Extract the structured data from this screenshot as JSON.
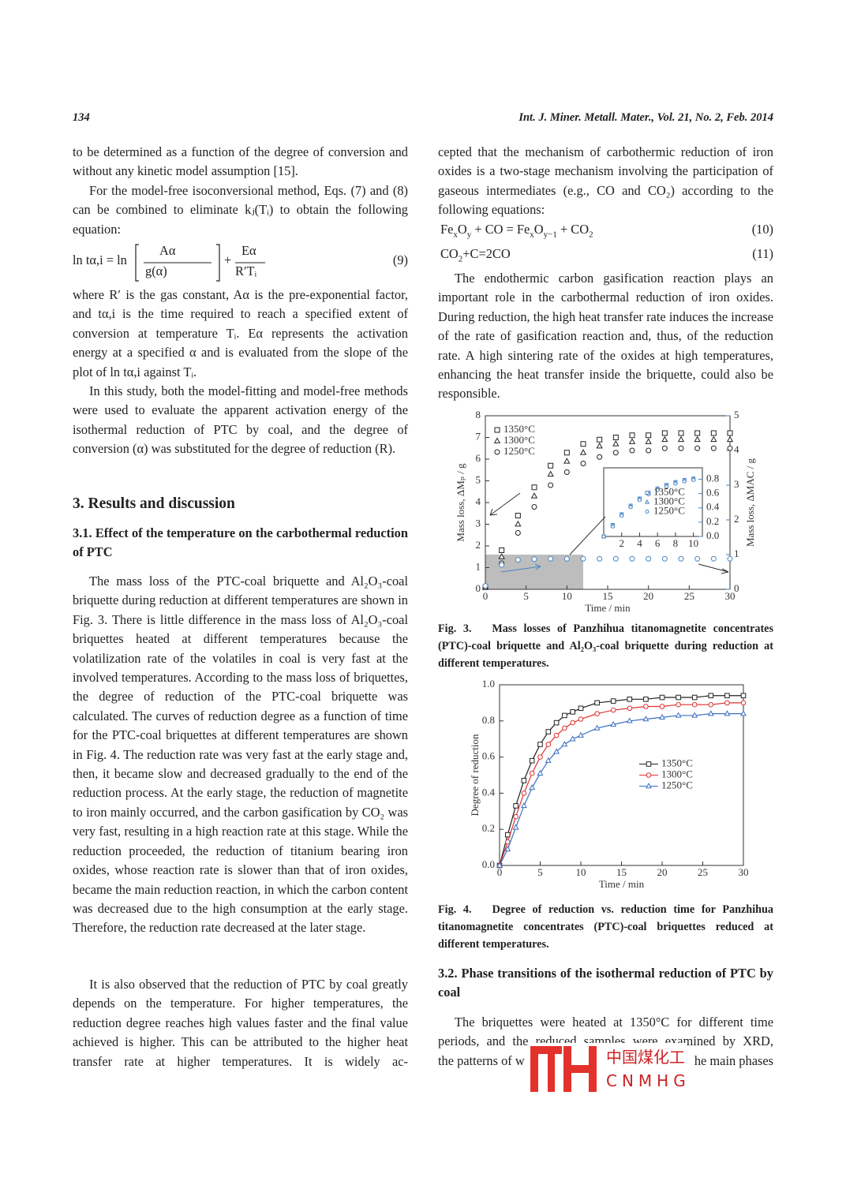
{
  "header": {
    "page": "134",
    "journal": "Int. J. Miner. Metall. Mater., Vol. 21, No. 2, Feb. 2014"
  },
  "left": {
    "p1": "to be determined as a function of the degree of conversion and without any kinetic model assumption [15].",
    "p2": "For the model-free isoconversional method, Eqs. (7) and (8) can be combined to eliminate kⱼ(Tᵢ) to obtain the following equation:",
    "eq9": {
      "lhs": "ln tα,i = ln",
      "num1": "Aα",
      "den1": "g(α)",
      "op": "+",
      "num2": "Eα",
      "den2": "R′Tᵢ",
      "number": "(9)"
    },
    "p3": "where R′ is the gas constant, Aα is the pre-exponential factor, and tα,i is the time required to reach a specified extent of conversion at temperature Tᵢ. Eα represents the activation energy at a specified α and is evaluated from the slope of the plot of ln tα,i against Tᵢ.",
    "p4": "In this study, both the model-fitting and model-free methods were used to evaluate the apparent activation energy of the isothermal reduction of PTC by coal, and the degree of conversion (α) was substituted for the degree of reduction (R).",
    "heading": "3. Results and discussion",
    "subheading": "3.1. Effect of the temperature on the carbothermal reduction of PTC",
    "p5": "The mass loss of the PTC-coal briquette and Al₂O₃-coal briquette during reduction at different temperatures are shown in Fig. 3. There is little difference in the mass loss of Al₂O₃-coal briquettes heated at different temperatures because the volatilization rate of the volatiles in coal is very fast at the involved temperatures. According to the mass loss of briquettes, the degree of reduction of the PTC-coal briquette was calculated. The curves of reduction degree as a function of time for the PTC-coal briquettes at different temperatures are shown in Fig. 4. The reduction rate was very fast at the early stage and, then, it became slow and decreased gradually to the end of the reduction process. At the early stage, the reduction of magnetite to iron mainly occurred, and the carbon gasification by CO₂ was very fast, resulting in a high reaction rate at this stage. While the reduction proceeded, the reduction of titanium bearing iron oxides, whose reaction rate is slower than that of iron oxides, became the main reduction reaction, in which the carbon content was decreased due to the high consumption at the early stage. Therefore, the reduction rate decreased at the later stage.",
    "p6": "It is also observed that the reduction of PTC by coal greatly depends on the temperature. For higher temperatures, the reduction degree reaches high values faster and the final value achieved is higher. This can be attributed to the higher heat transfer rate at higher temperatures. It is widely ac-"
  },
  "right": {
    "p1": "cepted that the mechanism of carbothermic reduction of iron oxides is a two-stage mechanism involving the participation of gaseous intermediates (e.g., CO and CO₂) according to the following equations:",
    "eq10": {
      "segments": [
        {
          "text": "Fe"
        },
        {
          "text": "x",
          "sub": true
        },
        {
          "text": "O"
        },
        {
          "text": "y",
          "sub": true
        },
        {
          "text": " + CO = Fe"
        },
        {
          "text": "x",
          "sub": true
        },
        {
          "text": "O"
        },
        {
          "text": "y−1",
          "sub": true
        },
        {
          "text": " + CO"
        },
        {
          "text": "2",
          "sub": true
        }
      ],
      "number": "(10)"
    },
    "eq11": {
      "segments": [
        {
          "text": "CO"
        },
        {
          "text": "2",
          "sub": true
        },
        {
          "text": "+C=2CO"
        }
      ],
      "number": "(11)"
    },
    "p2": "The endothermic carbon gasification reaction plays an important role in the carbothermal reduction of iron oxides. During reduction, the high heat transfer rate induces the increase of the rate of gasification reaction and, thus, of the reduction rate. A high sintering rate of the oxides at high temperatures, enhancing the heat transfer inside the briquette, could also be responsible.",
    "subheading": "3.2. Phase transitions of the isothermal reduction of PTC by coal",
    "p3": "The briquettes were heated at 1350°C for different time periods, and the reduced samples were examined by XRD,",
    "p3_tail_left": "the patterns of w",
    "p3_tail_right": "he main phases"
  },
  "figures": [
    {
      "caption": {
        "label": "Fig. 3.",
        "text": "Mass losses of Panzhihua titanomagnetite concentrates (PTC)-coal briquette and Al₂O₃-coal briquette during reduction at different temperatures."
      },
      "chart_data": {
        "type": "scatter",
        "x_label": "Time / min",
        "y_label": "Mass loss, ΔMₚ / g",
        "y2_label": "Mass loss, ΔMAC / g",
        "y2_color": "#4a86c5",
        "xlim": [
          0,
          30
        ],
        "xticks": [
          0,
          5,
          10,
          15,
          20,
          25,
          30
        ],
        "ylim": [
          0,
          8
        ],
        "yticks": [
          0,
          1,
          2,
          3,
          4,
          5,
          6,
          7,
          8
        ],
        "y2lim": [
          0,
          5
        ],
        "y2ticks": [
          0,
          1,
          2,
          3,
          4,
          5
        ],
        "legend": "upper left",
        "lines": false,
        "x": [
          0,
          2,
          4,
          6,
          8,
          10,
          12,
          14,
          16,
          18,
          20,
          22,
          24,
          26,
          28,
          30
        ],
        "series": [
          {
            "name": "1350°C",
            "color": "#222",
            "marker": "square",
            "values": [
              0.1,
              1.8,
              3.4,
              4.7,
              5.7,
              6.3,
              6.7,
              6.9,
              7.0,
              7.1,
              7.1,
              7.2,
              7.2,
              7.2,
              7.2,
              7.2
            ]
          },
          {
            "name": "1300°C",
            "color": "#222",
            "marker": "triangle",
            "values": [
              0.1,
              1.5,
              3.0,
              4.3,
              5.3,
              5.9,
              6.3,
              6.6,
              6.7,
              6.8,
              6.8,
              6.9,
              6.9,
              6.9,
              6.9,
              6.9
            ]
          },
          {
            "name": "1250°C",
            "color": "#222",
            "marker": "circle",
            "values": [
              0.1,
              1.2,
              2.6,
              3.8,
              4.8,
              5.4,
              5.8,
              6.1,
              6.3,
              6.4,
              6.4,
              6.5,
              6.5,
              6.5,
              6.5,
              6.5
            ]
          },
          {
            "color": "#4a86c5",
            "marker": "circle",
            "axis": "y2",
            "values": [
              0.1,
              0.7,
              0.85,
              0.87,
              0.88,
              0.88,
              0.88,
              0.88,
              0.88,
              0.88,
              0.88,
              0.88,
              0.88,
              0.88,
              0.88,
              0.88
            ]
          }
        ],
        "inset": {
          "type": "scatter",
          "xlim": [
            0,
            11
          ],
          "xticks": [
            2,
            4,
            6,
            8,
            10
          ],
          "y2lim": [
            0,
            0.96
          ],
          "y2ticks": [
            {
              "value": 0,
              "label": "0.0"
            },
            0.2,
            0.4,
            0.6,
            0.8
          ],
          "y2_color": "#4a86c5",
          "legend": "center right",
          "legend_text_color": "#4a86c5",
          "lines": false,
          "x": [
            0,
            1,
            2,
            3,
            4,
            5,
            6,
            7,
            8,
            9,
            10
          ],
          "series": [
            {
              "name": "1350°C",
              "color": "#4a86c5",
              "marker": "square",
              "axis": "y2",
              "values": [
                0,
                0.16,
                0.31,
                0.43,
                0.53,
                0.61,
                0.67,
                0.72,
                0.76,
                0.79,
                0.81
              ]
            },
            {
              "name": "1300°C",
              "color": "#4a86c5",
              "marker": "triangle",
              "axis": "y2",
              "values": [
                0,
                0.15,
                0.3,
                0.42,
                0.52,
                0.6,
                0.66,
                0.71,
                0.75,
                0.78,
                0.8
              ]
            },
            {
              "name": "1250°C",
              "color": "#4a86c5",
              "marker": "circle",
              "axis": "y2",
              "values": [
                0,
                0.14,
                0.29,
                0.41,
                0.51,
                0.59,
                0.65,
                0.7,
                0.74,
                0.77,
                0.79
              ]
            }
          ]
        }
      }
    },
    {
      "caption": {
        "label": "Fig. 4.",
        "text": "Degree of reduction vs. reduction time for Panzhihua titanomagnetite concentrates (PTC)-coal briquettes reduced at different temperatures."
      },
      "chart_data": {
        "type": "line",
        "x_label": "Time / min",
        "y_label": "Degree of reduction",
        "xlim": [
          0,
          30
        ],
        "xticks": [
          0,
          5,
          10,
          15,
          20,
          25,
          30
        ],
        "ylim": [
          0,
          1
        ],
        "yticks": [
          {
            "value": 0,
            "label": "0.0"
          },
          0.2,
          0.4,
          0.6,
          0.8,
          {
            "value": 1,
            "label": "1.0"
          }
        ],
        "legend": "center right",
        "lines": true,
        "x": [
          0,
          1,
          2,
          3,
          4,
          5,
          6,
          7,
          8,
          9,
          10,
          12,
          14,
          16,
          18,
          20,
          22,
          24,
          26,
          28,
          30
        ],
        "series": [
          {
            "name": "1350°C",
            "color": "#222",
            "marker": "square",
            "values": [
              0,
              0.17,
              0.33,
              0.47,
              0.58,
              0.67,
              0.74,
              0.79,
              0.83,
              0.85,
              0.87,
              0.9,
              0.91,
              0.92,
              0.92,
              0.93,
              0.93,
              0.93,
              0.94,
              0.94,
              0.94
            ]
          },
          {
            "name": "1300°C",
            "color": "#e03030",
            "marker": "circle",
            "values": [
              0,
              0.13,
              0.27,
              0.4,
              0.51,
              0.6,
              0.67,
              0.72,
              0.76,
              0.79,
              0.81,
              0.84,
              0.86,
              0.87,
              0.88,
              0.88,
              0.89,
              0.89,
              0.89,
              0.9,
              0.9
            ]
          },
          {
            "name": "1250°C",
            "color": "#3a6fc0",
            "marker": "triangle",
            "values": [
              0,
              0.09,
              0.21,
              0.33,
              0.43,
              0.51,
              0.58,
              0.63,
              0.67,
              0.7,
              0.72,
              0.76,
              0.78,
              0.8,
              0.81,
              0.82,
              0.83,
              0.83,
              0.84,
              0.84,
              0.84
            ]
          }
        ]
      }
    }
  ],
  "watermark": {
    "title": "中国煤化工",
    "subtitle": "CNMHG"
  }
}
